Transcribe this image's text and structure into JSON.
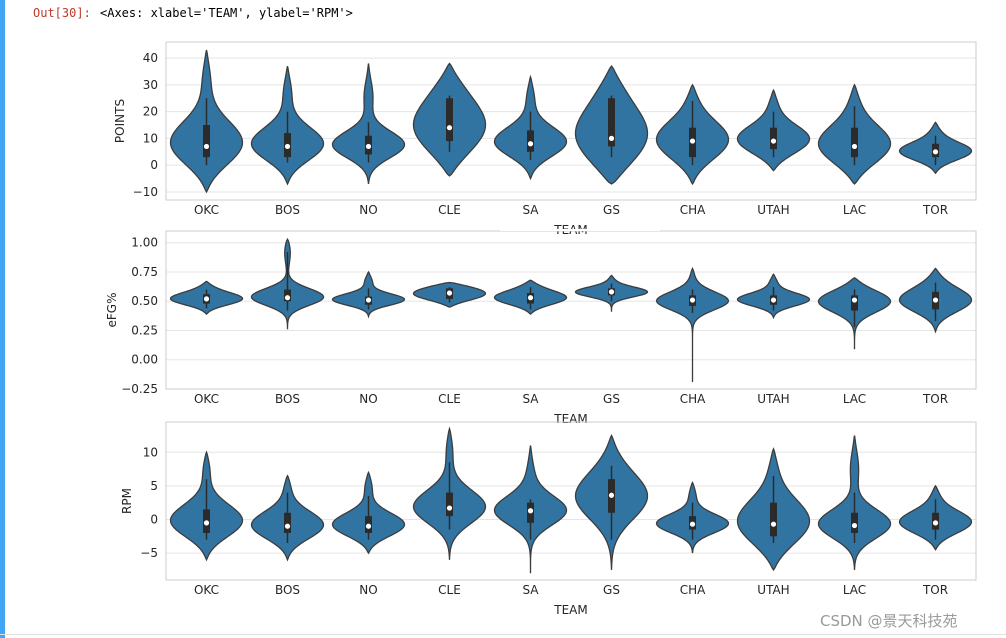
{
  "cell": {
    "prompt": "Out[30]:",
    "output_text": "<Axes: xlabel='TEAM', ylabel='RPM'>"
  },
  "watermark": "CSDN @景天科技苑",
  "colors": {
    "violin": "#3274a1",
    "edge": "#3c3c3c",
    "grid": "#e5e5e5",
    "box": "#2b2b2b"
  },
  "chart_data": [
    {
      "type": "violin",
      "title": "",
      "xlabel": "TEAM",
      "ylabel": "POINTS",
      "categories": [
        "OKC",
        "BOS",
        "NO",
        "CLE",
        "SA",
        "GS",
        "CHA",
        "UTAH",
        "LAC",
        "TOR"
      ],
      "ylim": [
        -13,
        46
      ],
      "yticks": [
        -10,
        0,
        10,
        20,
        30,
        40
      ],
      "ytick_labels": [
        "−10",
        "0",
        "10",
        "20",
        "30",
        "40"
      ],
      "grid": true,
      "violins": [
        {
          "min": -10,
          "max": 43,
          "q1": 3,
          "median": 7,
          "q3": 15,
          "whisker_low": 0,
          "whisker_high": 25
        },
        {
          "min": -7,
          "max": 37,
          "q1": 3,
          "median": 7,
          "q3": 12,
          "whisker_low": 1,
          "whisker_high": 20
        },
        {
          "min": -7,
          "max": 38,
          "q1": 4,
          "median": 7,
          "q3": 11,
          "whisker_low": 1,
          "whisker_high": 16
        },
        {
          "min": -4,
          "max": 38,
          "q1": 9,
          "median": 14,
          "q3": 25,
          "whisker_low": 5,
          "whisker_high": 26
        },
        {
          "min": -5,
          "max": 33,
          "q1": 5,
          "median": 8,
          "q3": 13,
          "whisker_low": 2,
          "whisker_high": 20
        },
        {
          "min": -7,
          "max": 37,
          "q1": 7,
          "median": 10,
          "q3": 25,
          "whisker_low": 3,
          "whisker_high": 26
        },
        {
          "min": -7,
          "max": 30,
          "q1": 3,
          "median": 9,
          "q3": 14,
          "whisker_low": 0,
          "whisker_high": 24
        },
        {
          "min": -2,
          "max": 28,
          "q1": 6,
          "median": 9,
          "q3": 14,
          "whisker_low": 3,
          "whisker_high": 20
        },
        {
          "min": -7,
          "max": 30,
          "q1": 3,
          "median": 7,
          "q3": 14,
          "whisker_low": 0,
          "whisker_high": 22
        },
        {
          "min": -3,
          "max": 16,
          "q1": 3,
          "median": 5,
          "q3": 8,
          "whisker_low": 0,
          "whisker_high": 11
        }
      ]
    },
    {
      "type": "violin",
      "title": "",
      "xlabel": "TEAM",
      "ylabel": "eFG%",
      "categories": [
        "OKC",
        "BOS",
        "NO",
        "CLE",
        "SA",
        "GS",
        "CHA",
        "UTAH",
        "LAC",
        "TOR"
      ],
      "ylim": [
        -0.25,
        1.1
      ],
      "yticks": [
        -0.25,
        0.0,
        0.25,
        0.5,
        0.75,
        1.0
      ],
      "ytick_labels": [
        "−0.25",
        "0.00",
        "0.25",
        "0.50",
        "0.75",
        "1.00"
      ],
      "grid": true,
      "violins": [
        {
          "min": 0.39,
          "max": 0.67,
          "q1": 0.48,
          "median": 0.52,
          "q3": 0.56,
          "whisker_low": 0.44,
          "whisker_high": 0.6
        },
        {
          "min": 0.26,
          "max": 1.03,
          "q1": 0.5,
          "median": 0.53,
          "q3": 0.6,
          "whisker_low": 0.42,
          "whisker_high": 0.92
        },
        {
          "min": 0.37,
          "max": 0.75,
          "q1": 0.47,
          "median": 0.51,
          "q3": 0.54,
          "whisker_low": 0.43,
          "whisker_high": 0.61
        },
        {
          "min": 0.45,
          "max": 0.66,
          "q1": 0.52,
          "median": 0.57,
          "q3": 0.61,
          "whisker_low": 0.49,
          "whisker_high": 0.62
        },
        {
          "min": 0.39,
          "max": 0.68,
          "q1": 0.48,
          "median": 0.53,
          "q3": 0.57,
          "whisker_low": 0.43,
          "whisker_high": 0.62
        },
        {
          "min": 0.41,
          "max": 0.72,
          "q1": 0.55,
          "median": 0.58,
          "q3": 0.61,
          "whisker_low": 0.5,
          "whisker_high": 0.65
        },
        {
          "min": -0.19,
          "max": 0.78,
          "q1": 0.46,
          "median": 0.51,
          "q3": 0.55,
          "whisker_low": 0.4,
          "whisker_high": 0.6
        },
        {
          "min": 0.36,
          "max": 0.73,
          "q1": 0.47,
          "median": 0.51,
          "q3": 0.55,
          "whisker_low": 0.42,
          "whisker_high": 0.62
        },
        {
          "min": 0.09,
          "max": 0.7,
          "q1": 0.42,
          "median": 0.51,
          "q3": 0.55,
          "whisker_low": 0.28,
          "whisker_high": 0.6
        },
        {
          "min": 0.24,
          "max": 0.78,
          "q1": 0.43,
          "median": 0.51,
          "q3": 0.58,
          "whisker_low": 0.33,
          "whisker_high": 0.66
        }
      ]
    },
    {
      "type": "violin",
      "title": "",
      "xlabel": "TEAM",
      "ylabel": "RPM",
      "categories": [
        "OKC",
        "BOS",
        "NO",
        "CLE",
        "SA",
        "GS",
        "CHA",
        "UTAH",
        "LAC",
        "TOR"
      ],
      "ylim": [
        -9,
        14.5
      ],
      "yticks": [
        -5,
        0,
        5,
        10
      ],
      "ytick_labels": [
        "−5",
        "0",
        "5",
        "10"
      ],
      "grid": true,
      "violins": [
        {
          "min": -6,
          "max": 10,
          "q1": -2,
          "median": -0.5,
          "q3": 1.5,
          "whisker_low": -3,
          "whisker_high": 6
        },
        {
          "min": -6,
          "max": 6.5,
          "q1": -2,
          "median": -1,
          "q3": 1,
          "whisker_low": -3.5,
          "whisker_high": 4
        },
        {
          "min": -5,
          "max": 7,
          "q1": -2,
          "median": -1,
          "q3": 0.5,
          "whisker_low": -3,
          "whisker_high": 3.5
        },
        {
          "min": -6,
          "max": 13.5,
          "q1": 0.5,
          "median": 1.7,
          "q3": 4,
          "whisker_low": -1.5,
          "whisker_high": 8.5
        },
        {
          "min": -8,
          "max": 11,
          "q1": -0.5,
          "median": 1.3,
          "q3": 2.5,
          "whisker_low": -3,
          "whisker_high": 3
        },
        {
          "min": -7.5,
          "max": 12.5,
          "q1": 1,
          "median": 3.6,
          "q3": 6,
          "whisker_low": -3,
          "whisker_high": 8
        },
        {
          "min": -5,
          "max": 5.5,
          "q1": -1.5,
          "median": -0.7,
          "q3": 0.5,
          "whisker_low": -3,
          "whisker_high": 2.5
        },
        {
          "min": -7.5,
          "max": 10.5,
          "q1": -2.5,
          "median": -0.7,
          "q3": 2.5,
          "whisker_low": -3.5,
          "whisker_high": 6.5
        },
        {
          "min": -7.5,
          "max": 12.5,
          "q1": -2,
          "median": -0.9,
          "q3": 1,
          "whisker_low": -3.5,
          "whisker_high": 4
        },
        {
          "min": -4.5,
          "max": 5,
          "q1": -1.5,
          "median": -0.5,
          "q3": 1,
          "whisker_low": -3,
          "whisker_high": 3
        }
      ]
    }
  ]
}
